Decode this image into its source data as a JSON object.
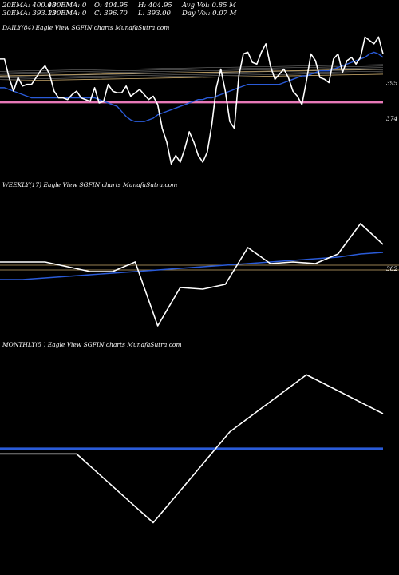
{
  "header": {
    "row1": [
      "20EMA: 400.08",
      "100EMA: 0",
      "O: 404.95",
      "H: 404.95",
      "Avg Vol: 0.85 M"
    ],
    "row2": [
      "30EMA: 393.13",
      "200EMA: 0",
      "C: 396.70",
      "L: 393.00",
      "Day Vol: 0.07 M"
    ]
  },
  "colors": {
    "price": "#ffffff",
    "ema": "#2a5bd8",
    "band": "#c8a86a",
    "pink": "#e879b8",
    "background": "#000000"
  },
  "chart_data": [
    {
      "type": "line",
      "label": "DAILY(84) Eagle  View  SGFIN  charts MunafaSutra.com",
      "ylim": [
        340,
        425
      ],
      "yticks": [
        395,
        374
      ],
      "series": [
        {
          "role": "price",
          "values": [
            409,
            409,
            398,
            390,
            398,
            393,
            394,
            394,
            398,
            402,
            405,
            400,
            390,
            386,
            386,
            385,
            388,
            390,
            386,
            385,
            384,
            392,
            383,
            384,
            394,
            390,
            389,
            389,
            393,
            387,
            389,
            391,
            388,
            385,
            387,
            382,
            368,
            360,
            347,
            352,
            348,
            356,
            366,
            360,
            352,
            348,
            354,
            370,
            392,
            403,
            390,
            372,
            368,
            399,
            412,
            413,
            407,
            406,
            413,
            418,
            405,
            397,
            400,
            403,
            398,
            390,
            387,
            382,
            396,
            412,
            408,
            398,
            397,
            395,
            409,
            412,
            401,
            408,
            410,
            406,
            410,
            422,
            420,
            418,
            422,
            412
          ]
        },
        {
          "role": "ema",
          "values": [
            392,
            392,
            391,
            390,
            389,
            388,
            387,
            386,
            386,
            386,
            386,
            386,
            386,
            386,
            386,
            386,
            386,
            386,
            386,
            386,
            386,
            386,
            385,
            384,
            383,
            382,
            381,
            378,
            375,
            373,
            372,
            372,
            372,
            373,
            374,
            376,
            377,
            378,
            379,
            380,
            381,
            382,
            383,
            384,
            385,
            385,
            386,
            386,
            387,
            388,
            389,
            390,
            391,
            392,
            393,
            394,
            394,
            394,
            394,
            394,
            394,
            394,
            394,
            395,
            396,
            397,
            398,
            399,
            399,
            400,
            401,
            402,
            402,
            402,
            403,
            404,
            405,
            406,
            407,
            408,
            409,
            410,
            412,
            413,
            412,
            410
          ]
        },
        {
          "role": "band-upper",
          "values": [
            399,
            399.5,
            400,
            400.5,
            401,
            401.5,
            402,
            402.5,
            403
          ]
        },
        {
          "role": "band-lower",
          "values": [
            396,
            396.5,
            397,
            397.5,
            398,
            398.5,
            399,
            399.5,
            400
          ]
        },
        {
          "role": "pink",
          "values": [
            383.5
          ]
        }
      ]
    },
    {
      "type": "line",
      "label": "WEEKLY(17) Eagle  View  SGFIN  charts MunafaSutra.com",
      "ylim": [
        340,
        425
      ],
      "yticks": [
        382
      ],
      "series": [
        {
          "role": "price",
          "values": [
            386,
            386,
            386,
            383,
            380,
            380,
            386,
            346,
            370,
            369,
            372,
            395,
            385,
            386,
            385,
            391,
            410,
            397
          ]
        },
        {
          "role": "ema",
          "values": [
            375,
            375,
            376,
            377,
            378,
            379,
            380,
            381,
            382,
            383,
            384,
            385,
            386,
            387,
            388,
            389,
            391,
            392
          ]
        },
        {
          "role": "band-upper",
          "values": [
            384
          ]
        },
        {
          "role": "band-lower",
          "values": [
            381
          ]
        }
      ]
    },
    {
      "type": "line",
      "label": "MONTHLY(5                )  Eagle  View  SGFIN  charts MunafaSutra.com",
      "ylim": [
        300,
        460
      ],
      "series": [
        {
          "role": "price",
          "values": [
            381,
            381,
            328,
            398,
            442,
            412
          ]
        },
        {
          "role": "ema",
          "values": [
            385
          ]
        }
      ]
    }
  ]
}
